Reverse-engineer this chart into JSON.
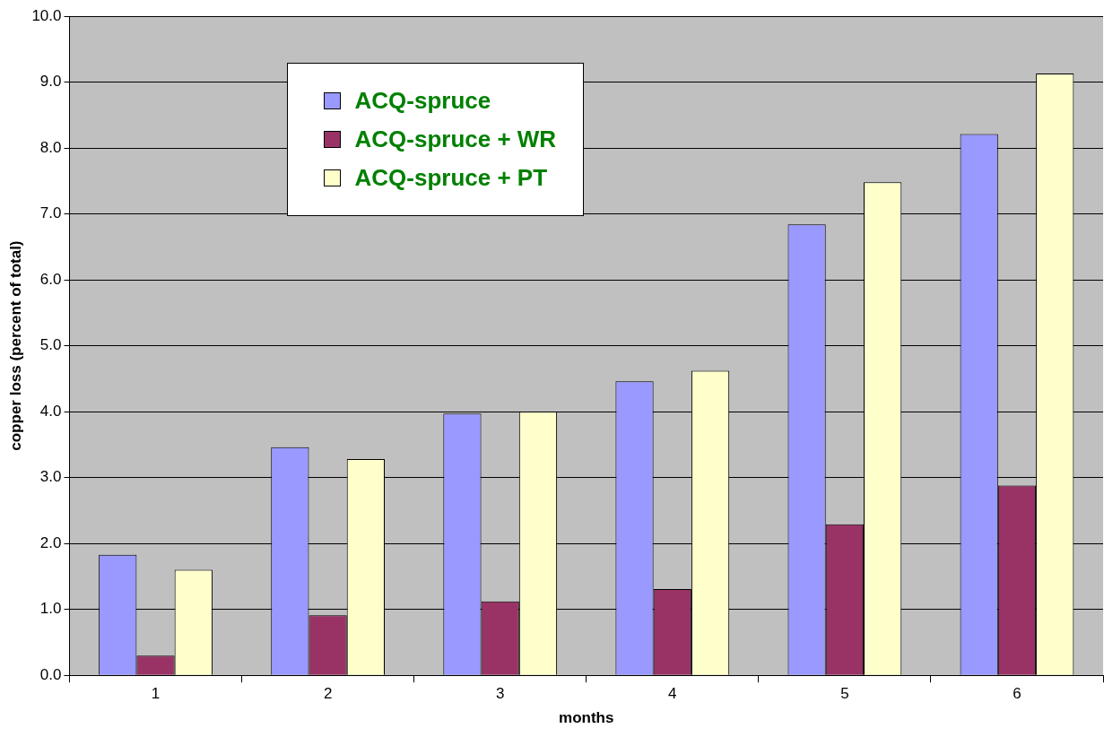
{
  "chart_data": {
    "type": "bar",
    "xlabel": "months",
    "ylabel": "copper loss (percent of total)",
    "categories": [
      "1",
      "2",
      "3",
      "4",
      "5",
      "6"
    ],
    "series": [
      {
        "name": "ACQ-spruce",
        "color": "#9999ff",
        "values": [
          1.83,
          3.46,
          3.97,
          4.46,
          6.84,
          8.21
        ]
      },
      {
        "name": "ACQ-spruce + WR",
        "color": "#993366",
        "values": [
          0.3,
          0.91,
          1.12,
          1.31,
          2.29,
          2.88
        ]
      },
      {
        "name": "ACQ-spruce + PT",
        "color": "#ffffcc",
        "values": [
          1.6,
          3.28,
          4.0,
          4.62,
          7.48,
          9.13
        ]
      }
    ],
    "ylim": [
      0,
      10
    ],
    "yticks": [
      {
        "value": 0,
        "label": "0.0"
      },
      {
        "value": 1,
        "label": "1.0"
      },
      {
        "value": 2,
        "label": "2.0"
      },
      {
        "value": 3,
        "label": "3.0"
      },
      {
        "value": 4,
        "label": "4.0"
      },
      {
        "value": 5,
        "label": "5.0"
      },
      {
        "value": 6,
        "label": "6.0"
      },
      {
        "value": 7,
        "label": "7.0"
      },
      {
        "value": 8,
        "label": "8.0"
      },
      {
        "value": 9,
        "label": "9.0"
      },
      {
        "value": 10,
        "label": "10.0"
      }
    ],
    "grid": "y",
    "legend": "top"
  }
}
